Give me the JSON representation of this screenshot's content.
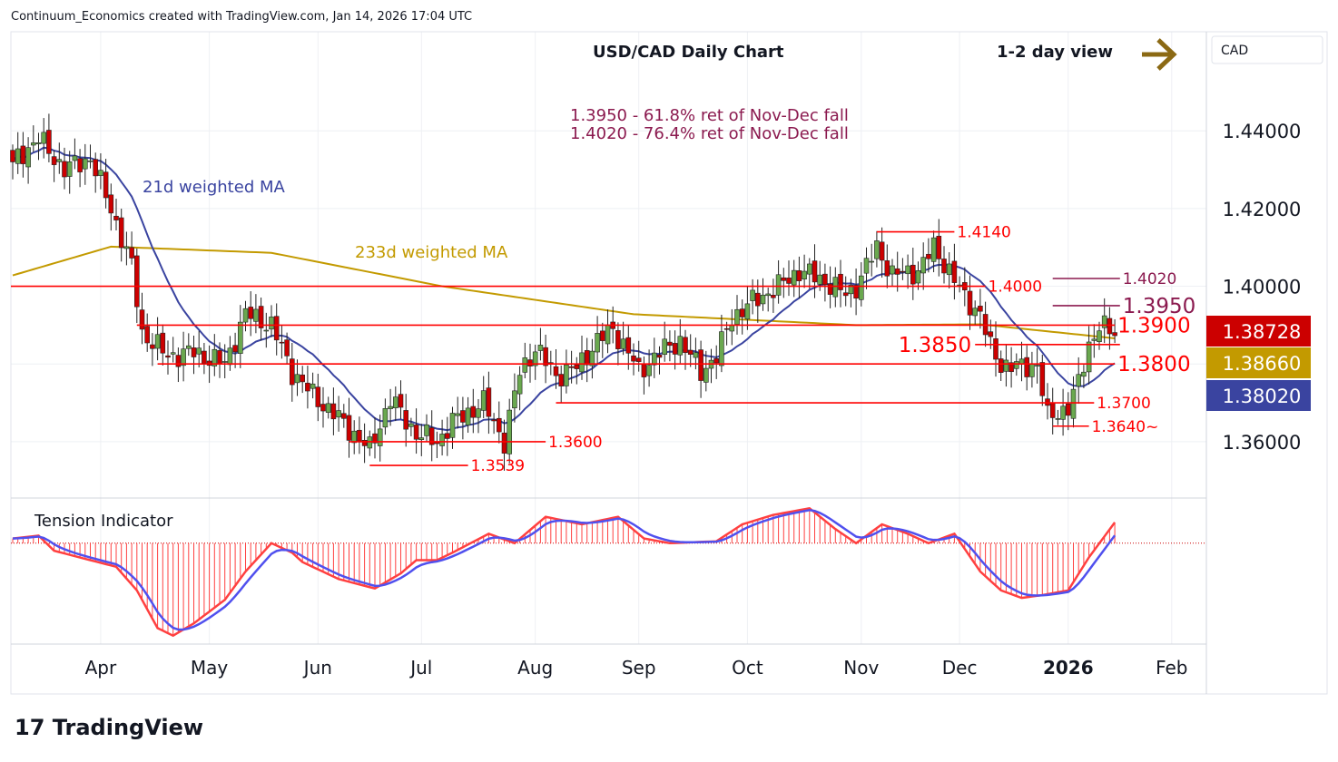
{
  "header": {
    "attribution": "Continuum_Economics created with TradingView.com, Jan 14, 2026 17:04 UTC"
  },
  "currency_badge": "CAD",
  "logo_text": "TradingView",
  "chart_data": {
    "type": "candlestick",
    "title": "USD/CAD Daily Chart",
    "view_label": "1-2 day view",
    "view_direction": "up-right arrow",
    "notes": [
      "1.3950 - 61.8% ret of Nov-Dec fall",
      "1.4020 - 76.4% ret of Nov-Dec fall"
    ],
    "ma21_label": "21d weighted MA",
    "ma233_label": "233d weighted MA",
    "x_tick_labels": [
      "Apr",
      "May",
      "Jun",
      "Jul",
      "Aug",
      "Sep",
      "Oct",
      "Nov",
      "Dec",
      "2026",
      "Feb"
    ],
    "x_tick_bars": [
      17,
      38,
      59,
      79,
      101,
      121,
      142,
      164,
      183,
      204,
      224
    ],
    "y_tick_labels": [
      "1.44000",
      "1.42000",
      "1.40000",
      "1.36000"
    ],
    "y_ticks": [
      1.44,
      1.42,
      1.4,
      1.36
    ],
    "ylim": [
      1.3455,
      1.4655
    ],
    "price_badges": [
      {
        "value": "1.38728",
        "color": "#cc0000",
        "price": 1.38728
      },
      {
        "value": "1.38660",
        "color": "#c39a00",
        "price": 1.3866
      },
      {
        "value": "1.38020",
        "color": "#3a44a0",
        "price": 1.3802
      }
    ],
    "close_anchors": [
      [
        0,
        1.432
      ],
      [
        5,
        1.438
      ],
      [
        10,
        1.43
      ],
      [
        15,
        1.433
      ],
      [
        19,
        1.42
      ],
      [
        23,
        1.405
      ],
      [
        25,
        1.388
      ],
      [
        30,
        1.382
      ],
      [
        35,
        1.383
      ],
      [
        41,
        1.38
      ],
      [
        45,
        1.393
      ],
      [
        50,
        1.39
      ],
      [
        54,
        1.378
      ],
      [
        58,
        1.372
      ],
      [
        63,
        1.366
      ],
      [
        69,
        1.358
      ],
      [
        73,
        1.371
      ],
      [
        78,
        1.362
      ],
      [
        82,
        1.36
      ],
      [
        85,
        1.365
      ],
      [
        91,
        1.37
      ],
      [
        95,
        1.36
      ],
      [
        98,
        1.378
      ],
      [
        101,
        1.384
      ],
      [
        105,
        1.377
      ],
      [
        109,
        1.379
      ],
      [
        113,
        1.386
      ],
      [
        116,
        1.389
      ],
      [
        119,
        1.383
      ],
      [
        121,
        1.378
      ],
      [
        125,
        1.383
      ],
      [
        129,
        1.386
      ],
      [
        133,
        1.378
      ],
      [
        136,
        1.382
      ],
      [
        139,
        1.392
      ],
      [
        143,
        1.396
      ],
      [
        148,
        1.4
      ],
      [
        152,
        1.404
      ],
      [
        156,
        1.402
      ],
      [
        161,
        1.398
      ],
      [
        163,
        1.4
      ],
      [
        167,
        1.41
      ],
      [
        170,
        1.403
      ],
      [
        175,
        1.404
      ],
      [
        178,
        1.41
      ],
      [
        181,
        1.404
      ],
      [
        184,
        1.397
      ],
      [
        187,
        1.393
      ],
      [
        189,
        1.384
      ],
      [
        191,
        1.38
      ],
      [
        195,
        1.379
      ],
      [
        198,
        1.38
      ],
      [
        200,
        1.366
      ],
      [
        204,
        1.369
      ],
      [
        206,
        1.375
      ],
      [
        208,
        1.385
      ],
      [
        210,
        1.39
      ],
      [
        213,
        1.38728
      ]
    ],
    "ma233_anchors": [
      [
        0,
        1.4028
      ],
      [
        19,
        1.4102
      ],
      [
        50,
        1.4086
      ],
      [
        83,
        1.4
      ],
      [
        120,
        1.3928
      ],
      [
        163,
        1.39
      ],
      [
        187,
        1.3902
      ],
      [
        213,
        1.3866
      ]
    ],
    "levels": [
      {
        "price": 1.414,
        "label": "1.4140",
        "color": "#ff0000",
        "from": 167,
        "to": 182,
        "label_side": "right"
      },
      {
        "price": 1.4,
        "label": "1.4000",
        "color": "#ff0000",
        "from": -1,
        "to": 188,
        "label_side": "right"
      },
      {
        "price": 1.402,
        "label": "1.4020",
        "color": "#8b1a4f",
        "from": 201,
        "to": 214,
        "label_side": "right"
      },
      {
        "price": 1.395,
        "label": "1.3950",
        "color": "#8b1a4f",
        "from": 201,
        "to": 214,
        "label_side": "right",
        "big": true
      },
      {
        "price": 1.39,
        "label": "1.3900",
        "color": "#ff0000",
        "from": 24,
        "to": 213,
        "label_side": "right",
        "big": true
      },
      {
        "price": 1.385,
        "label": "1.3850",
        "color": "#ff0000",
        "from": 186,
        "to": 214,
        "label_side": "left",
        "big": true
      },
      {
        "price": 1.38,
        "label": "1.3800",
        "color": "#ff0000",
        "from": 28,
        "to": 213,
        "label_side": "right",
        "big": true
      },
      {
        "price": 1.37,
        "label": "1.3700",
        "color": "#ff0000",
        "from": 105,
        "to": 209,
        "label_side": "right"
      },
      {
        "price": 1.364,
        "label": "1.3640~",
        "color": "#ff0000",
        "from": 201,
        "to": 208,
        "label_side": "right"
      },
      {
        "price": 1.36,
        "label": "1.3600",
        "color": "#ff0000",
        "from": 65,
        "to": 103,
        "label_side": "right"
      },
      {
        "price": 1.3539,
        "label": "1.3539",
        "color": "#ff0000",
        "from": 69,
        "to": 88,
        "label_side": "right"
      }
    ],
    "indicator": {
      "title": "Tension Indicator",
      "ylim": [
        -1.05,
        0.45
      ],
      "anchors": [
        [
          0,
          0.05
        ],
        [
          5,
          0.08
        ],
        [
          8,
          -0.08
        ],
        [
          15,
          -0.18
        ],
        [
          20,
          -0.25
        ],
        [
          24,
          -0.5
        ],
        [
          28,
          -0.9
        ],
        [
          31,
          -0.98
        ],
        [
          35,
          -0.85
        ],
        [
          41,
          -0.6
        ],
        [
          45,
          -0.3
        ],
        [
          50,
          0.0
        ],
        [
          54,
          -0.1
        ],
        [
          56,
          -0.2
        ],
        [
          63,
          -0.38
        ],
        [
          70,
          -0.48
        ],
        [
          75,
          -0.32
        ],
        [
          78,
          -0.18
        ],
        [
          82,
          -0.18
        ],
        [
          85,
          -0.1
        ],
        [
          92,
          0.1
        ],
        [
          97,
          0.0
        ],
        [
          103,
          0.28
        ],
        [
          110,
          0.2
        ],
        [
          117,
          0.28
        ],
        [
          122,
          0.05
        ],
        [
          127,
          0.0
        ],
        [
          136,
          0.02
        ],
        [
          141,
          0.2
        ],
        [
          147,
          0.3
        ],
        [
          154,
          0.37
        ],
        [
          159,
          0.15
        ],
        [
          163,
          0.0
        ],
        [
          168,
          0.2
        ],
        [
          173,
          0.1
        ],
        [
          177,
          0.0
        ],
        [
          182,
          0.1
        ],
        [
          187,
          -0.3
        ],
        [
          191,
          -0.5
        ],
        [
          195,
          -0.58
        ],
        [
          199,
          -0.55
        ],
        [
          204,
          -0.5
        ],
        [
          208,
          -0.15
        ],
        [
          213,
          0.22
        ]
      ]
    },
    "colors": {
      "up": "#6aa84f",
      "down": "#cc0000",
      "ma21": "#3a44a0",
      "ma233": "#c39a00",
      "tension": "#ff4040",
      "tension_signal": "#5050ee"
    }
  }
}
